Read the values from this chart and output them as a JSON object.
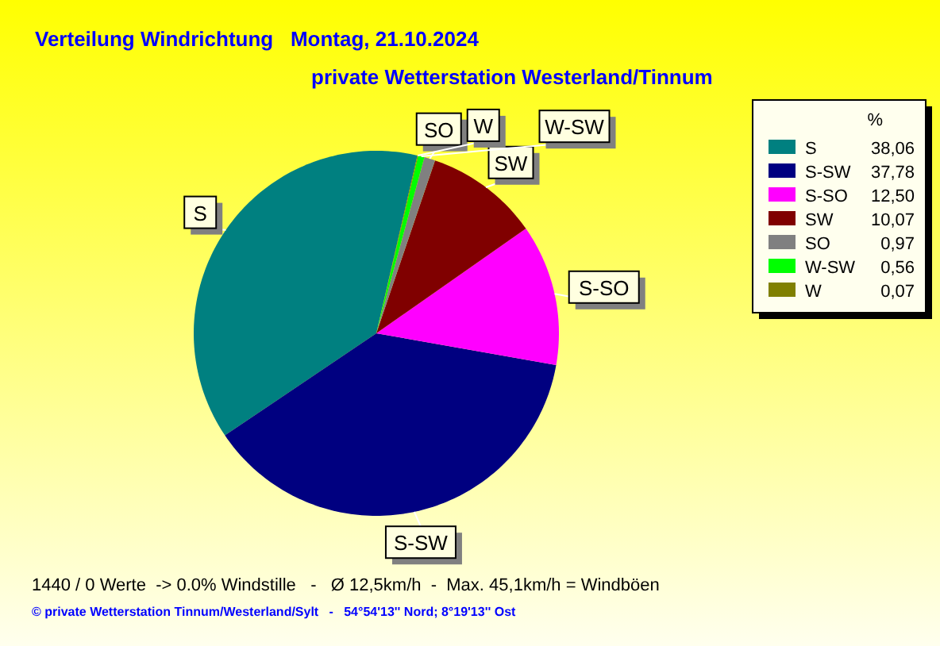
{
  "chart_data": {
    "type": "pie",
    "title": "Verteilung Windrichtung   Montag, 21.10.2024",
    "subtitle": "private Wetterstation Westerland/Tinnum",
    "legend_title": "%",
    "categories": [
      "S",
      "S-SW",
      "S-SO",
      "SW",
      "SO",
      "W-SW",
      "W"
    ],
    "values": [
      38.06,
      37.78,
      12.5,
      10.07,
      0.97,
      0.56,
      0.07
    ],
    "value_labels": [
      "38,06",
      "37,78",
      "12,50",
      "10,07",
      "0,97",
      "0,56",
      "0,07"
    ],
    "colors": [
      "#008080",
      "#000080",
      "#ff00ff",
      "#800000",
      "#808080",
      "#00ff00",
      "#808000"
    ],
    "legend": "top right",
    "annotations": [
      "1440 / 0 Werte  -> 0.0% Windstille   -   Ø 12,5km/h  -  Max. 45,1km/h = Windböen",
      "© private Wetterstation Tinnum/Westerland/Sylt   -   54°54'13'' Nord; 8°19'13'' Ost"
    ]
  }
}
